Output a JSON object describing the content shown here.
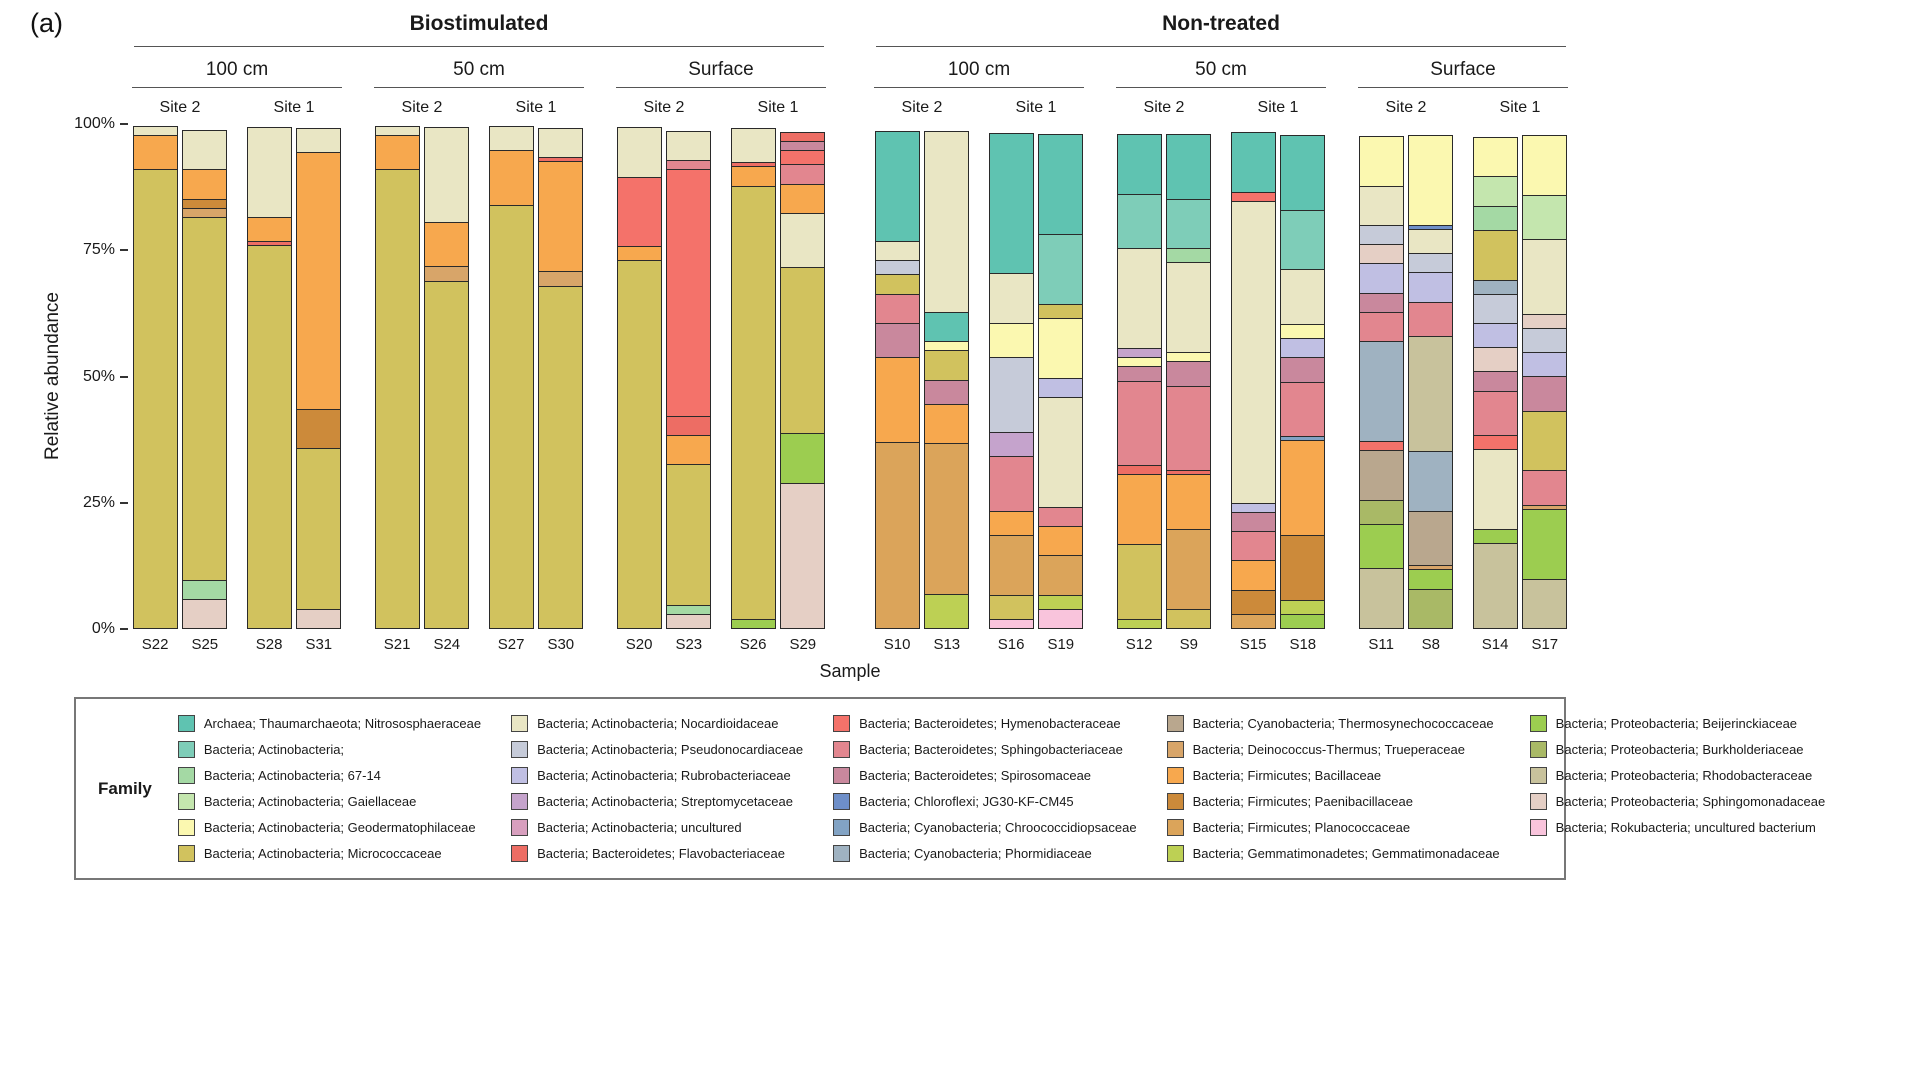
{
  "panel_label": "(a)",
  "y_axis": {
    "label": "Relative abundance",
    "ticks": [
      "100%",
      "75%",
      "50%",
      "25%",
      "0%"
    ]
  },
  "x_axis": {
    "label": "Sample"
  },
  "legend_title": "Family",
  "chart_data": {
    "type": "bar",
    "stacked": true,
    "unit": "%",
    "ylim": [
      0,
      100
    ],
    "ylabel": "Relative abundance",
    "xlabel": "Sample",
    "legend_position": "bottom",
    "grid": false,
    "groups": [
      {
        "treatment": "Biostimulated",
        "depths": [
          {
            "depth": "100 cm",
            "sites": [
              {
                "site": "Site 2",
                "samples": [
                  "S22",
                  "S25"
                ]
              },
              {
                "site": "Site 1",
                "samples": [
                  "S28",
                  "S31"
                ]
              }
            ]
          },
          {
            "depth": "50 cm",
            "sites": [
              {
                "site": "Site 2",
                "samples": [
                  "S21",
                  "S24"
                ]
              },
              {
                "site": "Site 1",
                "samples": [
                  "S27",
                  "S30"
                ]
              }
            ]
          },
          {
            "depth": "Surface",
            "sites": [
              {
                "site": "Site 2",
                "samples": [
                  "S20",
                  "S23"
                ]
              },
              {
                "site": "Site 1",
                "samples": [
                  "S26",
                  "S29"
                ]
              }
            ]
          }
        ]
      },
      {
        "treatment": "Non-treated",
        "depths": [
          {
            "depth": "100 cm",
            "sites": [
              {
                "site": "Site 2",
                "samples": [
                  "S10",
                  "S13"
                ]
              },
              {
                "site": "Site 1",
                "samples": [
                  "S16",
                  "S19"
                ]
              }
            ]
          },
          {
            "depth": "50 cm",
            "sites": [
              {
                "site": "Site 2",
                "samples": [
                  "S12",
                  "S9"
                ]
              },
              {
                "site": "Site 1",
                "samples": [
                  "S15",
                  "S18"
                ]
              }
            ]
          },
          {
            "depth": "Surface",
            "sites": [
              {
                "site": "Site 2",
                "samples": [
                  "S11",
                  "S8"
                ]
              },
              {
                "site": "Site 1",
                "samples": [
                  "S14",
                  "S17"
                ]
              }
            ]
          }
        ]
      }
    ],
    "families": [
      {
        "name": "Archaea; Thaumarchaeota; Nitrososphaeraceae",
        "color": "#5fc3b1"
      },
      {
        "name": "Bacteria; Actinobacteria;",
        "color": "#7ecdb8"
      },
      {
        "name": "Bacteria; Actinobacteria; 67-14",
        "color": "#a4d9a4"
      },
      {
        "name": "Bacteria; Actinobacteria; Gaiellaceae",
        "color": "#c4e6ae"
      },
      {
        "name": "Bacteria; Actinobacteria; Geodermatophilaceae",
        "color": "#fbf8b0"
      },
      {
        "name": "Bacteria; Actinobacteria; Micrococcaceae",
        "color": "#d1c25e"
      },
      {
        "name": "Bacteria; Actinobacteria; Nocardioidaceae",
        "color": "#e9e6c4"
      },
      {
        "name": "Bacteria; Actinobacteria; Pseudonocardiaceae",
        "color": "#c6cbd9"
      },
      {
        "name": "Bacteria; Actinobacteria; Rubrobacteriaceae",
        "color": "#c0bfe3"
      },
      {
        "name": "Bacteria; Actinobacteria; Streptomycetaceae",
        "color": "#c5a3cc"
      },
      {
        "name": "Bacteria; Actinobacteria; uncultured",
        "color": "#d89fbe"
      },
      {
        "name": "Bacteria; Bacteroidetes; Flavobacteriaceae",
        "color": "#ed6d64"
      },
      {
        "name": "Bacteria; Bacteroidetes; Hymenobacteraceae",
        "color": "#f4726a"
      },
      {
        "name": "Bacteria; Bacteroidetes; Sphingobacteriaceae",
        "color": "#e2868f"
      },
      {
        "name": "Bacteria; Bacteroidetes; Spirosomaceae",
        "color": "#c9889d"
      },
      {
        "name": "Bacteria; Chloroflexi; JG30-KF-CM45",
        "color": "#6e8fc9"
      },
      {
        "name": "Bacteria; Cyanobacteria; Chroococcidiopsaceae",
        "color": "#82a3c4"
      },
      {
        "name": "Bacteria; Cyanobacteria; Phormidiaceae",
        "color": "#9fb2c1"
      },
      {
        "name": "Bacteria; Cyanobacteria; Thermosynechococcaceae",
        "color": "#b9a78e"
      },
      {
        "name": "Bacteria; Deinococcus-Thermus; Trueperaceae",
        "color": "#d8a569"
      },
      {
        "name": "Bacteria; Firmicutes; Bacillaceae",
        "color": "#f7a84e"
      },
      {
        "name": "Bacteria; Firmicutes; Paenibacillaceae",
        "color": "#cc8a3a"
      },
      {
        "name": "Bacteria; Firmicutes; Planococcaceae",
        "color": "#dba45a"
      },
      {
        "name": "Bacteria; Gemmatimonadetes; Gemmatimonadaceae",
        "color": "#bdd054"
      },
      {
        "name": "Bacteria; Proteobacteria; Beijerinckiaceae",
        "color": "#9ccd50"
      },
      {
        "name": "Bacteria; Proteobacteria; Burkholderiaceae",
        "color": "#a9b966"
      },
      {
        "name": "Bacteria; Proteobacteria; Rhodobacteraceae",
        "color": "#c8c29c"
      },
      {
        "name": "Bacteria; Proteobacteria; Sphingomonadaceae",
        "color": "#e5cfc5"
      },
      {
        "name": "Bacteria; Rokubacteria; uncultured bacterium",
        "color": "#f9c4dc"
      }
    ],
    "bars": {
      "S22": [
        [
          5,
          91
        ],
        [
          20,
          7
        ],
        [
          6,
          2
        ]
      ],
      "S25": [
        [
          27,
          6
        ],
        [
          2,
          4
        ],
        [
          5,
          72
        ],
        [
          19,
          2
        ],
        [
          21,
          2
        ],
        [
          20,
          6
        ],
        [
          6,
          8
        ]
      ],
      "S28": [
        [
          5,
          76
        ],
        [
          11,
          1
        ],
        [
          20,
          5
        ],
        [
          6,
          18
        ]
      ],
      "S31": [
        [
          27,
          4
        ],
        [
          5,
          32
        ],
        [
          21,
          8
        ],
        [
          20,
          51
        ],
        [
          6,
          5
        ]
      ],
      "S21": [
        [
          5,
          91
        ],
        [
          20,
          7
        ],
        [
          6,
          2
        ]
      ],
      "S24": [
        [
          5,
          69
        ],
        [
          19,
          3
        ],
        [
          20,
          9
        ],
        [
          6,
          19
        ]
      ],
      "S27": [
        [
          5,
          84
        ],
        [
          20,
          11
        ],
        [
          6,
          5
        ]
      ],
      "S30": [
        [
          5,
          68
        ],
        [
          19,
          3
        ],
        [
          20,
          22
        ],
        [
          11,
          1
        ],
        [
          6,
          6
        ]
      ],
      "S20": [
        [
          5,
          73
        ],
        [
          20,
          3
        ],
        [
          12,
          14
        ],
        [
          6,
          10
        ]
      ],
      "S23": [
        [
          27,
          3
        ],
        [
          2,
          2
        ],
        [
          5,
          28
        ],
        [
          20,
          6
        ],
        [
          11,
          4
        ],
        [
          12,
          49
        ],
        [
          13,
          2
        ],
        [
          6,
          6
        ]
      ],
      "S26": [
        [
          24,
          2
        ],
        [
          5,
          86
        ],
        [
          20,
          4
        ],
        [
          11,
          1
        ],
        [
          6,
          7
        ]
      ],
      "S29": [
        [
          27,
          29
        ],
        [
          24,
          10
        ],
        [
          5,
          33
        ],
        [
          6,
          11
        ],
        [
          20,
          6
        ],
        [
          13,
          4
        ],
        [
          12,
          3
        ],
        [
          14,
          2
        ],
        [
          11,
          2
        ]
      ],
      "S10": [
        [
          22,
          37
        ],
        [
          20,
          17
        ],
        [
          14,
          7
        ],
        [
          13,
          6
        ],
        [
          5,
          4
        ],
        [
          7,
          3
        ],
        [
          6,
          4
        ],
        [
          0,
          22
        ]
      ],
      "S13": [
        [
          23,
          7
        ],
        [
          22,
          30
        ],
        [
          20,
          8
        ],
        [
          14,
          5
        ],
        [
          5,
          6
        ],
        [
          4,
          2
        ],
        [
          0,
          6
        ],
        [
          6,
          36
        ]
      ],
      "S16": [
        [
          28,
          2
        ],
        [
          5,
          5
        ],
        [
          22,
          12
        ],
        [
          20,
          5
        ],
        [
          13,
          11
        ],
        [
          9,
          5
        ],
        [
          7,
          15
        ],
        [
          4,
          7
        ],
        [
          6,
          10
        ],
        [
          0,
          28
        ]
      ],
      "S19": [
        [
          28,
          4
        ],
        [
          23,
          3
        ],
        [
          22,
          8
        ],
        [
          20,
          6
        ],
        [
          13,
          4
        ],
        [
          6,
          22
        ],
        [
          8,
          4
        ],
        [
          4,
          12
        ],
        [
          5,
          3
        ],
        [
          1,
          14
        ],
        [
          0,
          20
        ]
      ],
      "S12": [
        [
          23,
          2
        ],
        [
          5,
          15
        ],
        [
          20,
          14
        ],
        [
          11,
          2
        ],
        [
          13,
          17
        ],
        [
          14,
          3
        ],
        [
          4,
          2
        ],
        [
          9,
          2
        ],
        [
          6,
          20
        ],
        [
          1,
          11
        ],
        [
          0,
          12
        ]
      ],
      "S9": [
        [
          5,
          4
        ],
        [
          22,
          16
        ],
        [
          20,
          11
        ],
        [
          11,
          1
        ],
        [
          13,
          17
        ],
        [
          14,
          5
        ],
        [
          4,
          2
        ],
        [
          6,
          18
        ],
        [
          2,
          3
        ],
        [
          1,
          10
        ],
        [
          0,
          13
        ]
      ],
      "S15": [
        [
          22,
          3
        ],
        [
          21,
          5
        ],
        [
          20,
          6
        ],
        [
          13,
          6
        ],
        [
          14,
          4
        ],
        [
          8,
          2
        ],
        [
          6,
          60
        ],
        [
          12,
          2
        ],
        [
          0,
          12
        ]
      ],
      "S18": [
        [
          24,
          3
        ],
        [
          23,
          3
        ],
        [
          21,
          13
        ],
        [
          20,
          19
        ],
        [
          16,
          1
        ],
        [
          13,
          11
        ],
        [
          14,
          5
        ],
        [
          8,
          4
        ],
        [
          4,
          3
        ],
        [
          6,
          11
        ],
        [
          1,
          12
        ],
        [
          0,
          15
        ]
      ],
      "S11": [
        [
          26,
          12
        ],
        [
          24,
          9
        ],
        [
          25,
          5
        ],
        [
          18,
          10
        ],
        [
          12,
          2
        ],
        [
          17,
          20
        ],
        [
          13,
          6
        ],
        [
          14,
          4
        ],
        [
          8,
          6
        ],
        [
          27,
          4
        ],
        [
          7,
          4
        ],
        [
          6,
          8
        ],
        [
          4,
          10
        ]
      ],
      "S8": [
        [
          25,
          8
        ],
        [
          24,
          4
        ],
        [
          19,
          1
        ],
        [
          18,
          11
        ],
        [
          17,
          12
        ],
        [
          26,
          23
        ],
        [
          13,
          7
        ],
        [
          8,
          6
        ],
        [
          7,
          4
        ],
        [
          6,
          5
        ],
        [
          15,
          1
        ],
        [
          4,
          18
        ]
      ],
      "S14": [
        [
          26,
          17
        ],
        [
          24,
          3
        ],
        [
          6,
          16
        ],
        [
          12,
          3
        ],
        [
          13,
          9
        ],
        [
          14,
          4
        ],
        [
          27,
          5
        ],
        [
          8,
          5
        ],
        [
          7,
          6
        ],
        [
          17,
          3
        ],
        [
          5,
          10
        ],
        [
          2,
          5
        ],
        [
          3,
          6
        ],
        [
          4,
          8
        ]
      ],
      "S17": [
        [
          26,
          10
        ],
        [
          24,
          14
        ],
        [
          19,
          1
        ],
        [
          13,
          7
        ],
        [
          5,
          12
        ],
        [
          14,
          7
        ],
        [
          8,
          5
        ],
        [
          7,
          5
        ],
        [
          27,
          3
        ],
        [
          6,
          15
        ],
        [
          3,
          9
        ],
        [
          4,
          12
        ]
      ]
    }
  }
}
